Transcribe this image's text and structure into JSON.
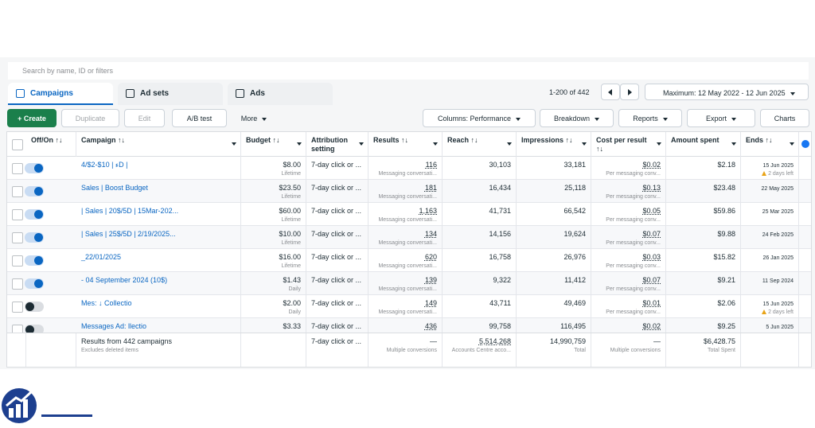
{
  "search_placeholder": "Search by name, ID or filters",
  "tabs": [
    "Campaigns",
    "Ad sets",
    "Ads"
  ],
  "pagination": "1-200 of 442",
  "date_range": "Maximum: 12 May 2022 - 12 Jun 2025",
  "toolbar": {
    "left": [
      "+ Create",
      "Duplicate",
      "Edit",
      "A/B test",
      "More"
    ],
    "right": [
      "Columns: Performance",
      "Breakdown",
      "Reports",
      "Export",
      "Charts"
    ]
  },
  "columns": [
    "Off/On ↑↓",
    "Campaign ↑↓",
    "Budget ↑↓",
    "Attribution setting",
    "Results ↑↓",
    "Reach ↑↓",
    "Impressions ↑↓",
    "Cost per result ↑↓",
    "Amount spent",
    "Ends ↑↓"
  ],
  "rows": [
    {
      "on": true,
      "campaign": "ء | 10$-2$/4D |",
      "budget": "$8.00",
      "budget_type": "Lifetime",
      "attribution": "7-day click or ...",
      "results": "116",
      "results_type": "Messaging conversati...",
      "reach": "30,103",
      "impressions": "33,181",
      "cost": "$0.02",
      "cost_type": "Per messaging conv...",
      "spent": "$2.18",
      "ends": "15 Jun 2025",
      "ends_note": "2 days left"
    },
    {
      "on": true,
      "campaign": "Sales | Boost Budget",
      "budget": "$23.50",
      "budget_type": "Lifetime",
      "attribution": "7-day click or ...",
      "results": "181",
      "results_type": "Messaging conversati...",
      "reach": "16,434",
      "impressions": "25,118",
      "cost": "$0.13",
      "cost_type": "Per messaging conv...",
      "spent": "$23.48",
      "ends": "22 May 2025"
    },
    {
      "on": true,
      "campaign": "| Sales | 20$/5D | 15Mar-202...",
      "budget": "$60.00",
      "budget_type": "Lifetime",
      "attribution": "7-day click or ...",
      "results": "1,163",
      "results_type": "Messaging conversati...",
      "reach": "41,731",
      "impressions": "66,542",
      "cost": "$0.05",
      "cost_type": "Per messaging conv...",
      "spent": "$59.86",
      "ends": "25 Mar 2025"
    },
    {
      "on": true,
      "campaign": "| Sales | 25$/5D | 2/19/2025...",
      "budget": "$10.00",
      "budget_type": "Lifetime",
      "attribution": "7-day click or ...",
      "results": "134",
      "results_type": "Messaging conversati...",
      "reach": "14,156",
      "impressions": "19,624",
      "cost": "$0.07",
      "cost_type": "Per messaging conv...",
      "spent": "$9.88",
      "ends": "24 Feb 2025"
    },
    {
      "on": true,
      "campaign": "_22/01/2025",
      "budget": "$16.00",
      "budget_type": "Lifetime",
      "attribution": "7-day click or ...",
      "results": "620",
      "results_type": "Messaging conversati...",
      "reach": "16,758",
      "impressions": "26,976",
      "cost": "$0.03",
      "cost_type": "Per messaging conv...",
      "spent": "$15.82",
      "ends": "26 Jan 2025"
    },
    {
      "on": true,
      "campaign": "- 04 September 2024 (10$)",
      "budget": "$1.43",
      "budget_type": "Daily",
      "attribution": "7-day click or ...",
      "results": "139",
      "results_type": "Messaging conversati...",
      "reach": "9,322",
      "impressions": "11,412",
      "cost": "$0.07",
      "cost_type": "Per messaging conv...",
      "spent": "$9.21",
      "ends": "11 Sep 2024"
    },
    {
      "on": false,
      "campaign": "Mes: ↓ Collectio",
      "budget": "$2.00",
      "budget_type": "Daily",
      "attribution": "7-day click or ...",
      "results": "149",
      "results_type": "Messaging conversati...",
      "reach": "43,711",
      "impressions": "49,469",
      "cost": "$0.01",
      "cost_type": "Per messaging conv...",
      "spent": "$2.06",
      "ends": "15 Jun 2025",
      "ends_note": "2 days left"
    },
    {
      "on": false,
      "campaign": "Messages Ad: llectio",
      "budget": "$3.33",
      "attribution": "7-day click or ...",
      "results": "436",
      "reach": "99,758",
      "impressions": "116,495",
      "cost": "$0.02",
      "spent": "$9.25",
      "ends": "5 Jun 2025"
    }
  ],
  "footer": {
    "campaign": "Results from 442 campaigns",
    "campaign_note": "Excludes deleted items",
    "attribution": "7-day click or ...",
    "results": "—",
    "results_note": "Multiple conversions",
    "reach": "5,514,268",
    "reach_note": "Accounts Centre acco...",
    "impressions": "14,990,759",
    "impressions_note": "Total",
    "cost": "—",
    "cost_note": "Multiple conversions",
    "spent": "$6,428.75",
    "spent_note": "Total Spent"
  }
}
